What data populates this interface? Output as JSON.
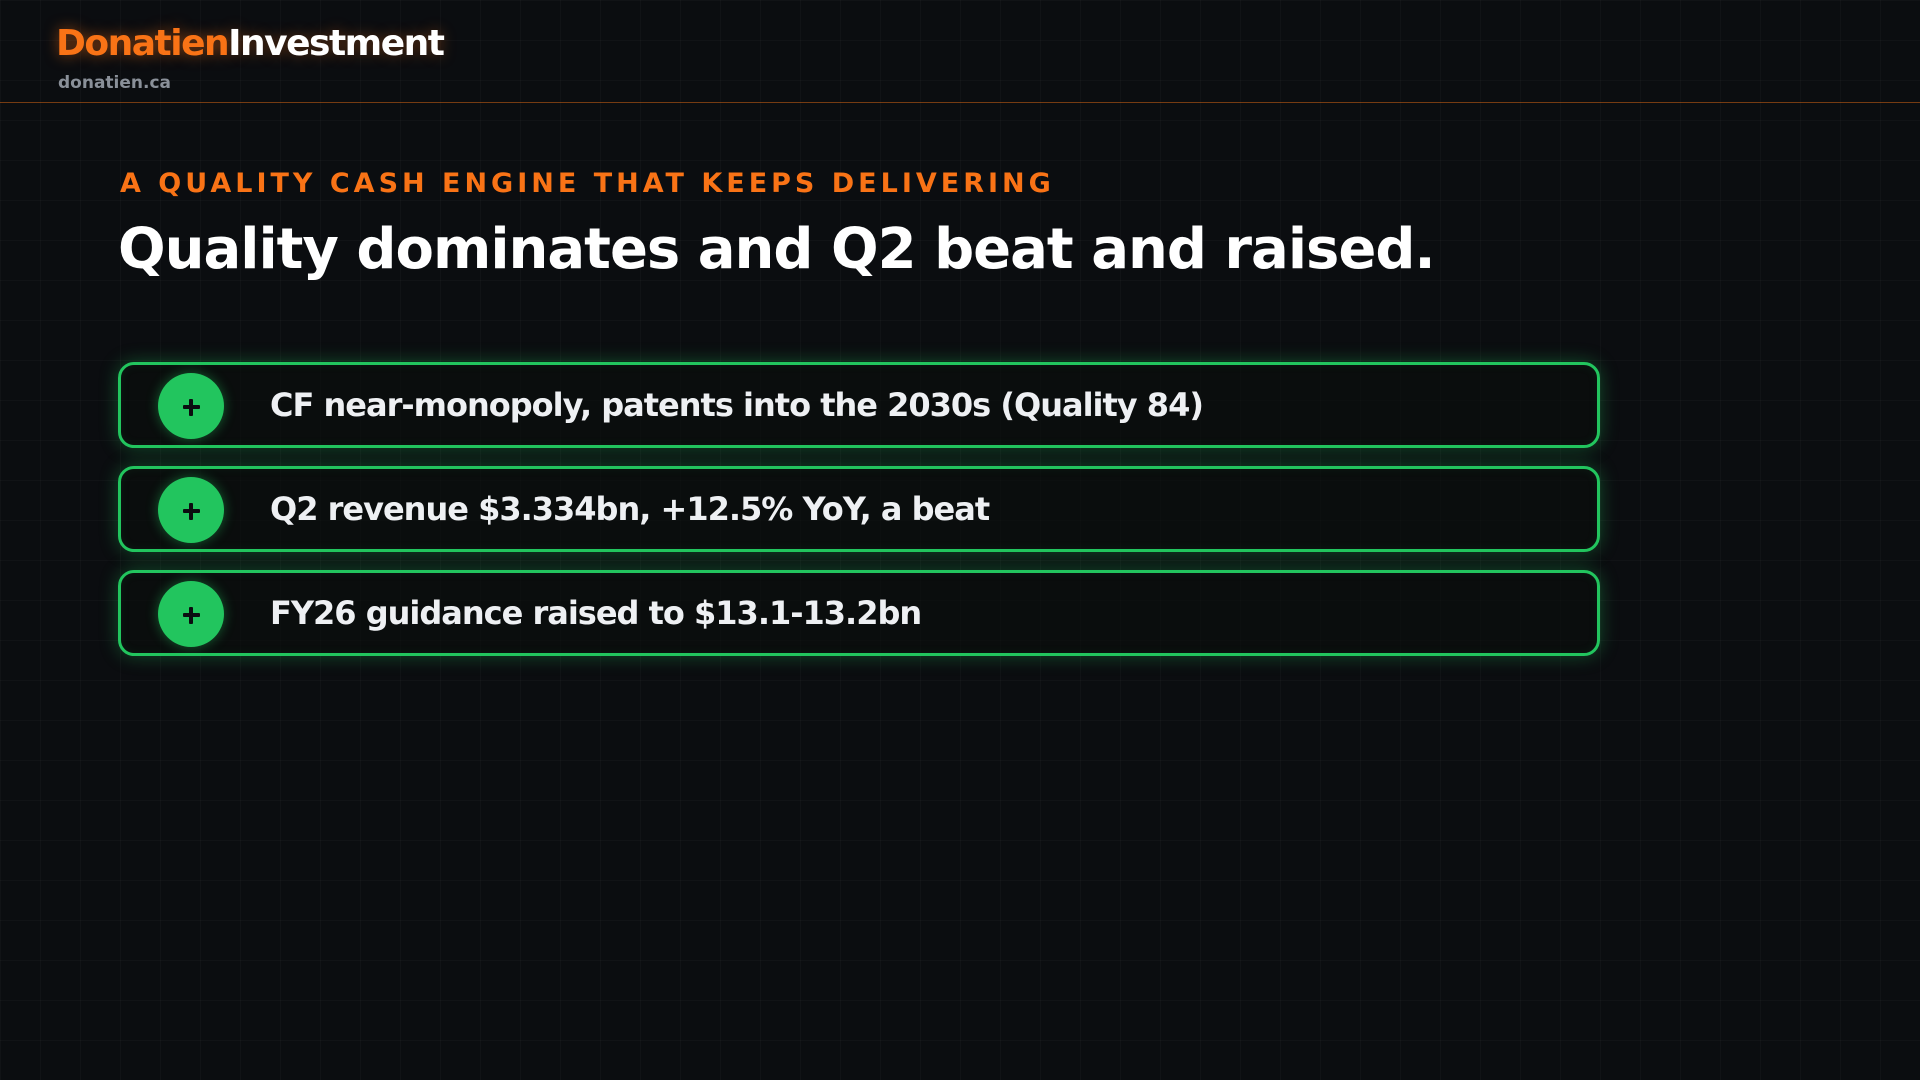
{
  "header": {
    "brand_primary": "Donatien",
    "brand_secondary": "Investment",
    "domain": "donatien.ca"
  },
  "slide": {
    "eyebrow": "A QUALITY CASH ENGINE THAT KEEPS DELIVERING",
    "headline": "Quality dominates and Q2 beat and raised.",
    "points": [
      {
        "icon": "plus-icon",
        "text": "CF near-monopoly, patents into the 2030s (Quality 84)"
      },
      {
        "icon": "plus-icon",
        "text": "Q2 revenue $3.334bn, +12.5% YoY, a beat"
      },
      {
        "icon": "plus-icon",
        "text": "FY26 guidance raised to $13.1-13.2bn"
      }
    ]
  },
  "colors": {
    "background": "#0b0d10",
    "accent": "#f97316",
    "positive": "#22c55e",
    "muted": "#8a9099"
  }
}
